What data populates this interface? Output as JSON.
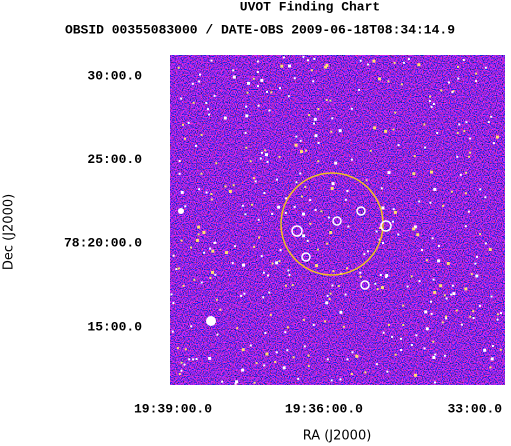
{
  "chart_data": {
    "type": "image",
    "title": "UVOT Finding Chart",
    "subtitle": "OBSID 00355083000 / DATE-OBS 2009-06-18T08:34:14.9",
    "x_label": "RA (J2000)",
    "y_label": "Dec (J2000)",
    "xlim": [
      294.765,
      293.1
    ],
    "ylim": [
      78.192,
      78.521
    ],
    "xticks": [
      {
        "value": 294.75,
        "label": "19:39:00.0"
      },
      {
        "value": 294.0,
        "label": "19:36:00.0"
      },
      {
        "value": 293.25,
        "label": "33:00.0"
      }
    ],
    "yticks": [
      {
        "value": 78.5,
        "label": "30:00.0"
      },
      {
        "value": 78.41667,
        "label": "25:00.0"
      },
      {
        "value": 78.33333,
        "label": "78:20:00.0"
      },
      {
        "value": 78.25,
        "label": "15:00.0"
      }
    ]
  }
}
